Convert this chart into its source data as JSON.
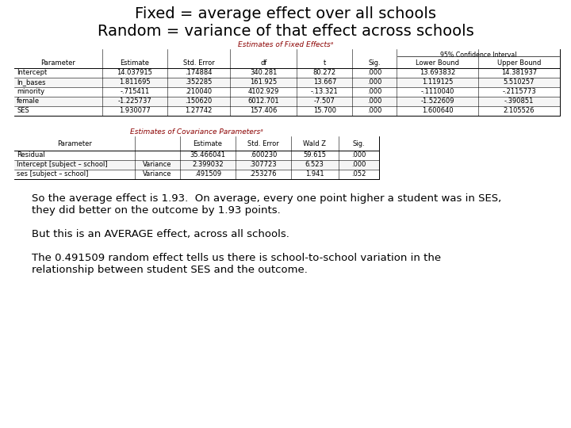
{
  "title_line1": "Fixed = average effect over all schools",
  "title_line2": "Random = variance of that effect across schools",
  "title_fontsize": 14,
  "bg_color": "#ffffff",
  "fixed_table_title": "Estimates of Fixed Effectsᵃ",
  "fixed_rows": [
    [
      "Intercept",
      "14.037915",
      ".174884",
      "340.281",
      "80.272",
      ".000",
      "13.693832",
      "14.381937"
    ],
    [
      "ln_bases",
      "1.811695",
      ".352285",
      "161.925",
      "13.667",
      ".000",
      "1.119125",
      "5.510257"
    ],
    [
      "minority",
      "-.715411",
      ".210040",
      "4102.929",
      "-.13.321",
      ".000",
      "-.1110040",
      "-.2115773"
    ],
    [
      "female",
      "-1.225737",
      ".150620",
      "6012.701",
      "-7.507",
      ".000",
      "-1.522609",
      "-.390851"
    ],
    [
      "SES",
      "1.930077",
      "1.27742",
      "157.406",
      "15.700",
      ".000",
      "1.600640",
      "2.105526"
    ]
  ],
  "cov_table_title": "Estimates of Covariance Parametersᵃ",
  "cov_rows": [
    [
      "Residual",
      "",
      "35.466041",
      ".600230",
      "59.615",
      ".000"
    ],
    [
      "Intercept [subject – school]",
      "Variance",
      "2.399032",
      ".307723",
      "6.523",
      ".000"
    ],
    [
      "ses [subject – school]",
      "Variance",
      ".491509",
      ".253276",
      "1.941",
      ".052"
    ]
  ],
  "body_text": [
    "So the average effect is 1.93.  On average, every one point higher a student was in SES,",
    "they did better on the outcome by 1.93 points.",
    "",
    "But this is an AVERAGE effect, across all schools.",
    "",
    "The 0.491509 random effect tells us there is school-to-school variation in the",
    "relationship between student SES and the outcome."
  ],
  "body_fontsize": 9.5,
  "table_title_color": "#8b0000",
  "table_fontsize": 6.0
}
